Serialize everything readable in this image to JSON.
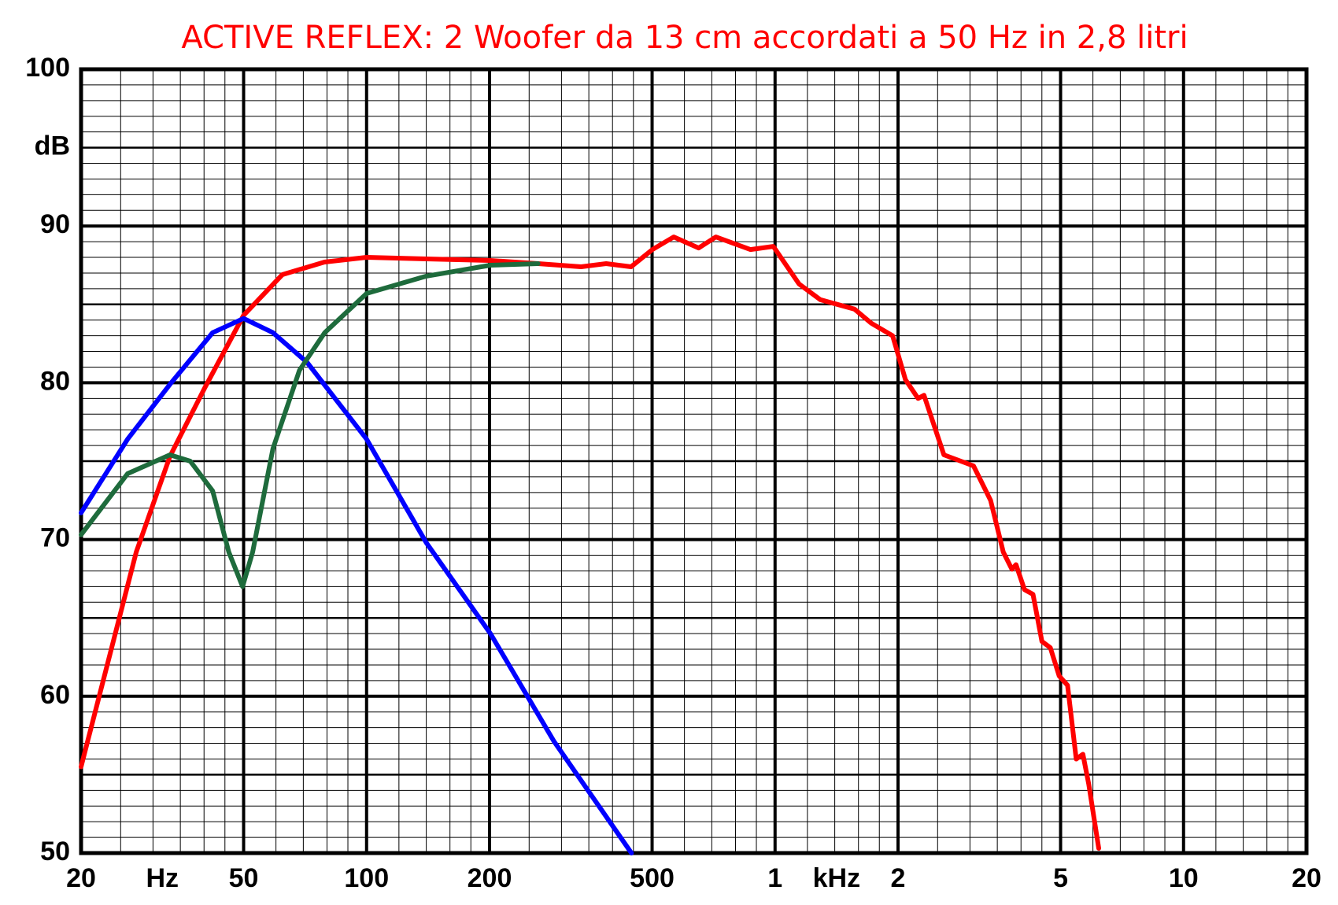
{
  "chart_data": {
    "type": "line",
    "title": "ACTIVE REFLEX: 2 Woofer da 13 cm accordati a 50 Hz in 2,8 litri",
    "ylabel": "dB",
    "x_units": [
      "Hz",
      "kHz"
    ],
    "xlog": true,
    "grid": true,
    "xlim": [
      20,
      20000
    ],
    "ylim": [
      50,
      100
    ],
    "xticks": [
      20,
      50,
      100,
      200,
      500,
      {
        "value": 1000,
        "label": "1"
      },
      {
        "value": 2000,
        "label": "2"
      },
      {
        "value": 5000,
        "label": "5"
      },
      {
        "value": 10000,
        "label": "10"
      },
      {
        "value": 20000,
        "label": "20"
      }
    ],
    "yticks": [
      50,
      60,
      70,
      80,
      90,
      100
    ],
    "xminor": [
      25,
      30,
      35,
      40,
      45,
      60,
      70,
      80,
      90,
      120,
      140,
      160,
      180,
      250,
      300,
      350,
      400,
      450,
      600,
      700,
      800,
      900,
      1200,
      1400,
      1600,
      1800,
      2500,
      3000,
      3500,
      4000,
      4500,
      6000,
      7000,
      8000,
      9000,
      12000,
      14000,
      16000,
      18000
    ],
    "yminor": [
      51,
      52,
      53,
      54,
      55,
      56,
      57,
      58,
      59,
      61,
      62,
      63,
      64,
      65,
      66,
      67,
      68,
      69,
      71,
      72,
      73,
      74,
      75,
      76,
      77,
      78,
      79,
      81,
      82,
      83,
      84,
      85,
      86,
      87,
      88,
      89,
      91,
      92,
      93,
      94,
      95,
      96,
      97,
      98,
      99
    ],
    "series": [
      {
        "color": "#ff0000",
        "x": [
          20,
          27.3,
          33,
          40.2,
          50,
          62.2,
          78.9,
          100,
          140,
          201,
          263,
          335,
          386,
          444,
          501,
          565,
          650,
          716,
          870,
          990,
          1145,
          1290,
          1565,
          1720,
          1940,
          2085,
          2240,
          2315,
          2590,
          3060,
          3370,
          3620,
          3800,
          3890,
          4080,
          4280,
          4500,
          4720,
          4960,
          5200,
          5460,
          5670,
          5860,
          6200
        ],
        "values": [
          55.5,
          69.2,
          75.3,
          79.7,
          84.3,
          86.9,
          87.7,
          88.0,
          87.9,
          87.8,
          87.6,
          87.4,
          87.6,
          87.4,
          88.5,
          89.3,
          88.6,
          89.3,
          88.5,
          88.7,
          86.3,
          85.3,
          84.7,
          83.8,
          83.0,
          80.2,
          79.0,
          79.2,
          75.4,
          74.7,
          72.5,
          69.2,
          68.1,
          68.4,
          66.8,
          66.5,
          63.5,
          63.1,
          61.3,
          60.7,
          56.0,
          56.3,
          54.4,
          50.3
        ]
      },
      {
        "color": "#0000ff",
        "x": [
          20,
          26,
          33,
          42,
          50,
          59,
          71.5,
          100,
          140,
          201,
          288,
          445
        ],
        "values": [
          71.7,
          76.4,
          79.9,
          83.2,
          84.1,
          83.2,
          81.3,
          76.4,
          69.8,
          64.0,
          57.1,
          50
        ]
      },
      {
        "color": "#1e6b3c",
        "x": [
          20,
          26,
          33,
          37,
          42,
          46,
          49.7,
          52.6,
          59,
          68.5,
          79,
          100,
          140,
          201,
          263
        ],
        "values": [
          70.3,
          74.2,
          75.4,
          75.0,
          73.1,
          69.2,
          67.0,
          69.2,
          75.8,
          80.8,
          83.2,
          85.7,
          86.8,
          87.5,
          87.6
        ]
      }
    ]
  }
}
